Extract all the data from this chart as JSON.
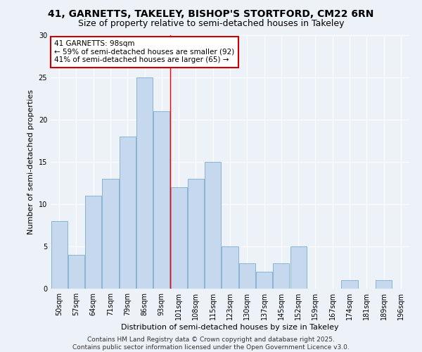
{
  "title1": "41, GARNETTS, TAKELEY, BISHOP'S STORTFORD, CM22 6RN",
  "title2": "Size of property relative to semi-detached houses in Takeley",
  "xlabel": "Distribution of semi-detached houses by size in Takeley",
  "ylabel": "Number of semi-detached properties",
  "categories": [
    "50sqm",
    "57sqm",
    "64sqm",
    "71sqm",
    "79sqm",
    "86sqm",
    "93sqm",
    "101sqm",
    "108sqm",
    "115sqm",
    "123sqm",
    "130sqm",
    "137sqm",
    "145sqm",
    "152sqm",
    "159sqm",
    "167sqm",
    "174sqm",
    "181sqm",
    "189sqm",
    "196sqm"
  ],
  "values": [
    8,
    4,
    11,
    13,
    18,
    25,
    21,
    12,
    13,
    15,
    5,
    3,
    2,
    3,
    5,
    0,
    0,
    1,
    0,
    1,
    0
  ],
  "bar_color": "#c5d8ed",
  "bar_edge_color": "#89b4d4",
  "property_line_x": 6.5,
  "annotation_title": "41 GARNETTS: 98sqm",
  "annotation_line1": "← 59% of semi-detached houses are smaller (92)",
  "annotation_line2": "41% of semi-detached houses are larger (65) →",
  "annotation_box_color": "#cc0000",
  "ylim": [
    0,
    30
  ],
  "yticks": [
    0,
    5,
    10,
    15,
    20,
    25,
    30
  ],
  "footer": "Contains HM Land Registry data © Crown copyright and database right 2025.\nContains public sector information licensed under the Open Government Licence v3.0.",
  "bg_color": "#edf1f8",
  "plot_bg_color": "#edf1f8",
  "title_fontsize": 10,
  "subtitle_fontsize": 9,
  "axis_label_fontsize": 8,
  "tick_fontsize": 7,
  "footer_fontsize": 6.5,
  "annotation_fontsize": 7.5
}
